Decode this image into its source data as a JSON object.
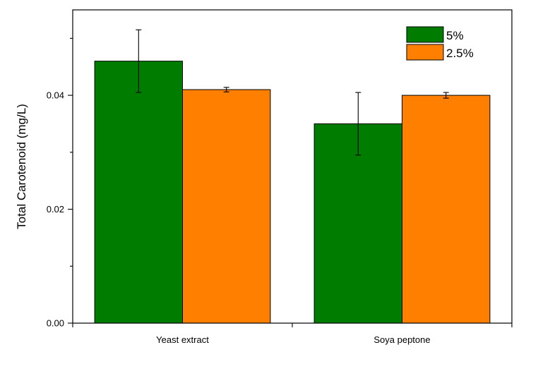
{
  "chart_data": {
    "type": "bar",
    "title": "",
    "xlabel": "",
    "ylabel": "Total Carotenoid (mg/L)",
    "ylim": [
      0,
      0.055
    ],
    "yticks": [
      {
        "value": 0.0,
        "label": "0.00"
      },
      {
        "value": 0.02,
        "label": "0.02"
      },
      {
        "value": 0.04,
        "label": "0.04"
      }
    ],
    "categories": [
      "Yeast extract",
      "Soya peptone"
    ],
    "series": [
      {
        "name": "5%",
        "color": "#007d00",
        "values": [
          0.046,
          0.035
        ],
        "errors": [
          0.0055,
          0.0055
        ]
      },
      {
        "name": "2.5%",
        "color": "#ff8000",
        "values": [
          0.041,
          0.04
        ],
        "errors": [
          0.0004,
          0.0005
        ]
      }
    ],
    "grid": false,
    "legend_position": "top-right"
  }
}
